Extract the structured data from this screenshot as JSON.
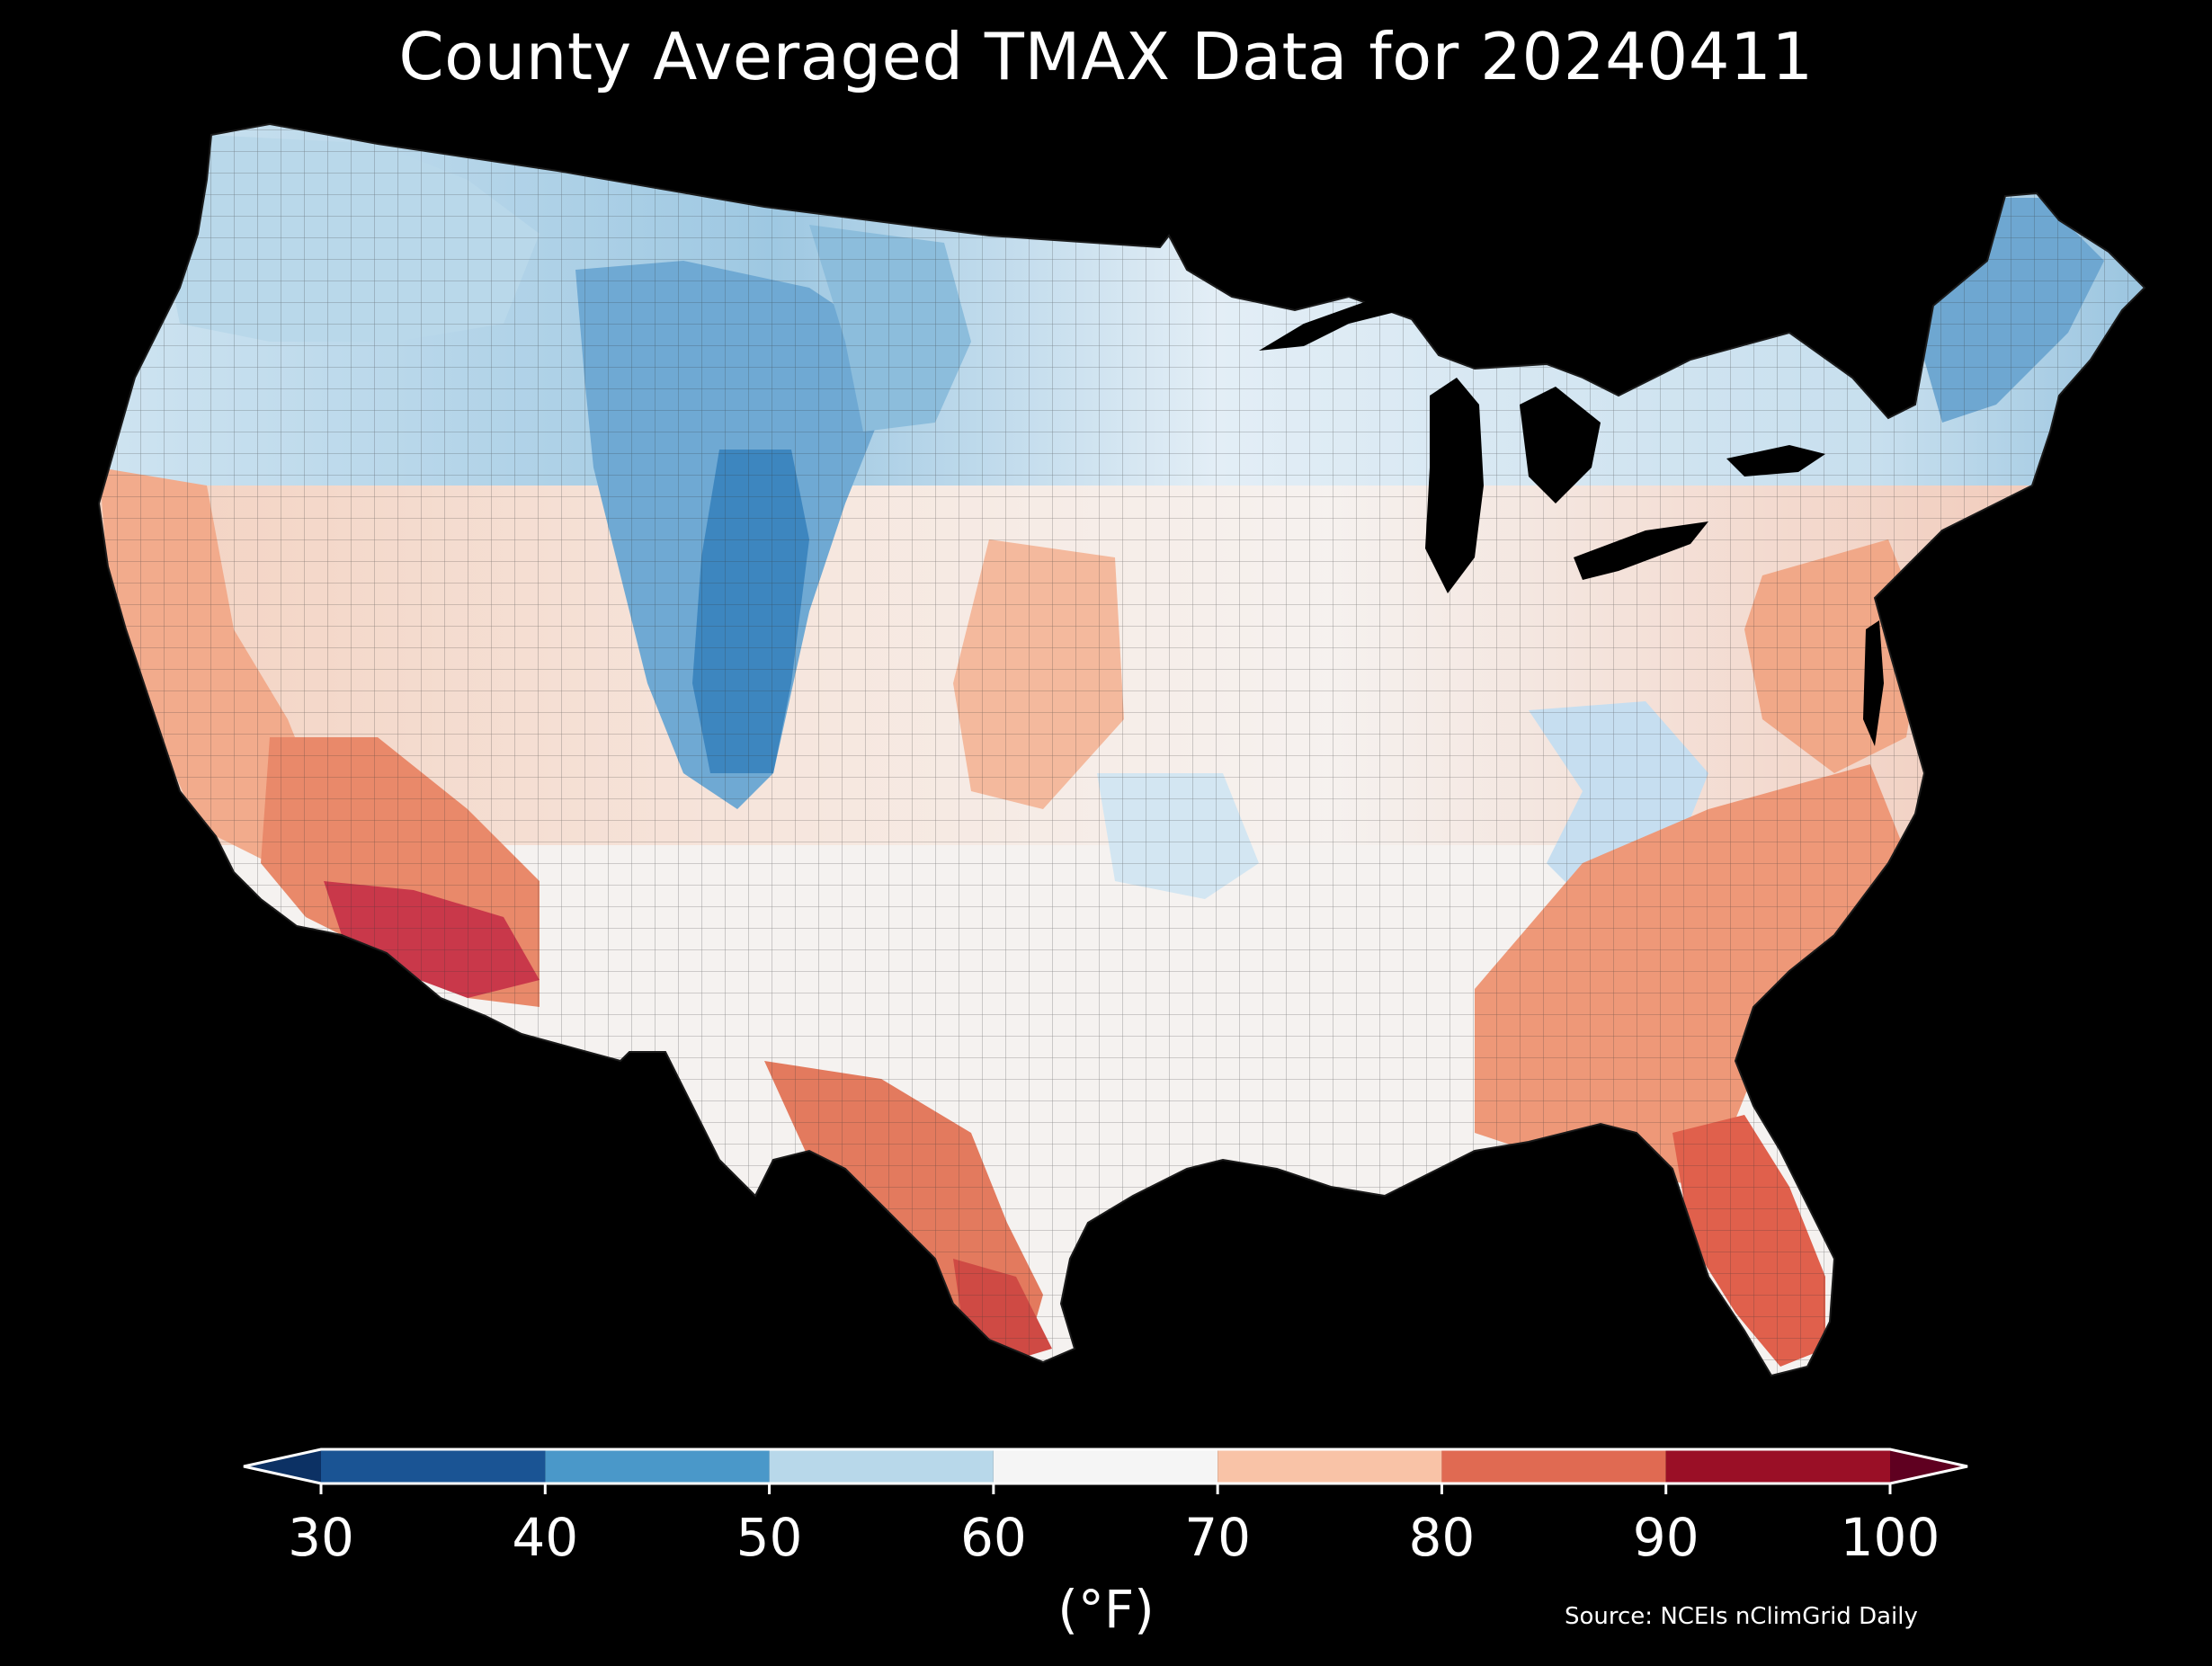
{
  "title": "County Averaged TMAX Data for 20240411",
  "colorbar": {
    "unit_label": "(°F)",
    "ticks": [
      "30",
      "40",
      "50",
      "60",
      "70",
      "80",
      "90",
      "100"
    ],
    "bins": [
      {
        "range": [
          30,
          40
        ],
        "color": "#1a5494"
      },
      {
        "range": [
          40,
          50
        ],
        "color": "#4a98c9"
      },
      {
        "range": [
          50,
          60
        ],
        "color": "#b8d8ea"
      },
      {
        "range": [
          60,
          70
        ],
        "color": "#f5f5f5"
      },
      {
        "range": [
          70,
          80
        ],
        "color": "#f9c3a7"
      },
      {
        "range": [
          80,
          90
        ],
        "color": "#e06a52"
      },
      {
        "range": [
          90,
          100
        ],
        "color": "#9a0f26"
      }
    ],
    "extend_low_color": "#0c3164",
    "extend_high_color": "#5f0020"
  },
  "source": "Source: NCEIs nClimGrid Daily",
  "map": {
    "region": "Contiguous United States",
    "background_color": "#000000",
    "boundary_color": "#222222"
  }
}
